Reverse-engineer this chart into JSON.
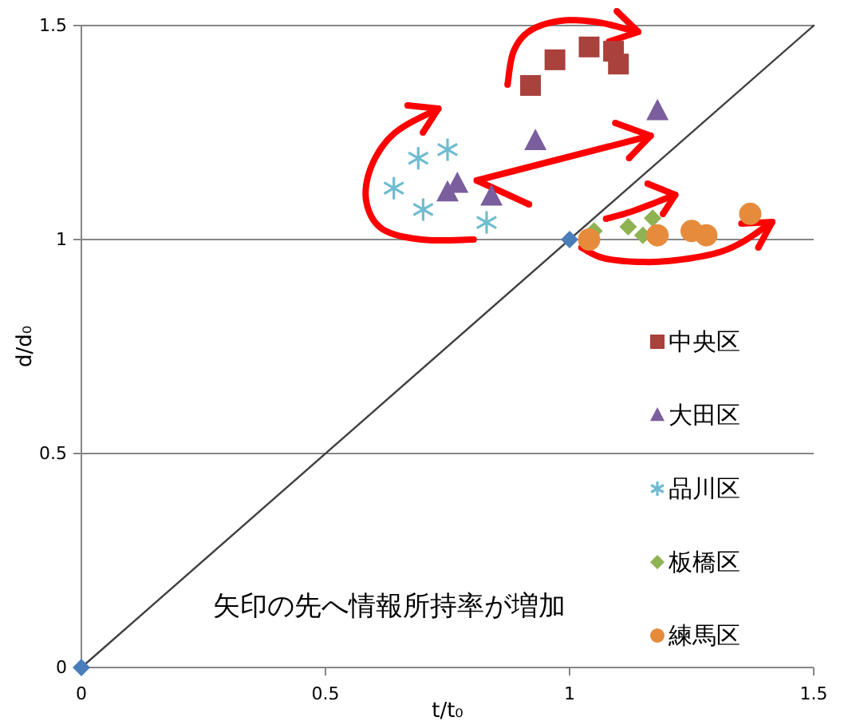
{
  "chart_data": {
    "type": "scatter",
    "xlabel": "t/t₀",
    "ylabel": "d/d₀",
    "annotations": [
      "矢印の先へ情報所持率が増加"
    ],
    "xlim": [
      0,
      1.5
    ],
    "ylim": [
      0,
      1.5
    ],
    "xticks": [
      0,
      0.5,
      1,
      1.5
    ],
    "yticks": [
      0,
      0.5,
      1,
      1.5
    ],
    "grid": "y",
    "legend": "bottom right",
    "series": [
      {
        "type": "line",
        "color": "#404040",
        "x": [
          0,
          1.5
        ],
        "values": [
          0,
          1.5
        ]
      },
      {
        "color": "#4a7ebb",
        "marker": "diamond",
        "x": [
          0,
          1
        ],
        "values": [
          0,
          1
        ]
      },
      {
        "name": "中央区",
        "color": "#a9413d",
        "marker": "square",
        "x": [
          0.92,
          0.97,
          1.04,
          1.09,
          1.1
        ],
        "values": [
          1.36,
          1.42,
          1.45,
          1.44,
          1.41
        ]
      },
      {
        "name": "大田区",
        "color": "#7b5e9e",
        "marker": "triangle",
        "x": [
          0.75,
          0.77,
          0.84,
          0.93,
          1.18
        ],
        "values": [
          1.11,
          1.13,
          1.1,
          1.23,
          1.3
        ]
      },
      {
        "name": "品川区",
        "color": "#6fbcd0",
        "marker": "cross",
        "x": [
          0.64,
          0.69,
          0.7,
          0.75,
          0.83
        ],
        "values": [
          1.12,
          1.19,
          1.07,
          1.21,
          1.04
        ]
      },
      {
        "name": "板橋区",
        "color": "#8fb253",
        "marker": "diamond",
        "x": [
          1.05,
          1.12,
          1.15,
          1.17
        ],
        "values": [
          1.02,
          1.03,
          1.01,
          1.05
        ]
      },
      {
        "name": "練馬区",
        "color": "#e68b3c",
        "marker": "circle",
        "x": [
          1.04,
          1.18,
          1.25,
          1.28,
          1.37
        ],
        "values": [
          1.0,
          1.01,
          1.02,
          1.01,
          1.06
        ]
      }
    ]
  }
}
